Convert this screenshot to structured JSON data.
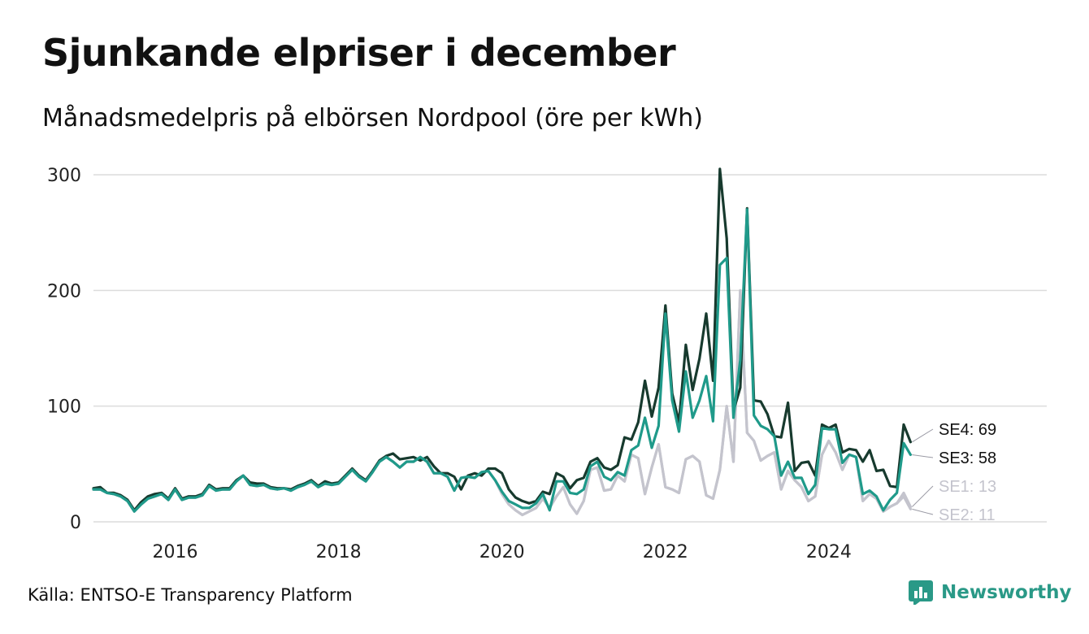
{
  "header": {
    "title": "Sjunkande elpriser i december",
    "subtitle": "Månadsmedelpris på elbörsen Nordpool (öre per kWh)"
  },
  "footer": {
    "source": "Källa: ENTSO-E Transparency Platform",
    "brand": "Newsworthy"
  },
  "colors": {
    "SE4": "#173a2e",
    "SE3": "#1f9a8a",
    "SE1": "#c4c4cd",
    "SE2": "#c4c4cd",
    "grid": "#dcdcdc",
    "brand": "#2a9987"
  },
  "chart_data": {
    "type": "line",
    "x_start": "2015-01",
    "x_end": "2024-12",
    "xticks": [
      "2016",
      "2018",
      "2020",
      "2022",
      "2024"
    ],
    "yticks": [
      0,
      100,
      200,
      300
    ],
    "ylim": [
      0,
      300
    ],
    "series": [
      {
        "name": "SE4",
        "end_label": "SE4: 69",
        "values": [
          29,
          30,
          25,
          25,
          23,
          19,
          10,
          17,
          22,
          24,
          25,
          20,
          29,
          20,
          22,
          22,
          24,
          32,
          28,
          29,
          29,
          36,
          40,
          34,
          33,
          33,
          30,
          29,
          29,
          28,
          31,
          33,
          36,
          31,
          35,
          33,
          34,
          40,
          46,
          40,
          36,
          44,
          53,
          57,
          59,
          54,
          55,
          56,
          53,
          56,
          48,
          42,
          42,
          39,
          28,
          40,
          42,
          40,
          46,
          46,
          42,
          28,
          21,
          18,
          16,
          18,
          26,
          24,
          42,
          39,
          29,
          36,
          38,
          52,
          55,
          47,
          45,
          49,
          73,
          71,
          86,
          122,
          91,
          116,
          187,
          111,
          86,
          153,
          114,
          141,
          180,
          122,
          305,
          245,
          96,
          116,
          271,
          105,
          104,
          93,
          74,
          73,
          103,
          44,
          51,
          52,
          40,
          84,
          81,
          84,
          60,
          63,
          62,
          52,
          62,
          44,
          45,
          31,
          30,
          84,
          69
        ]
      },
      {
        "name": "SE3",
        "end_label": "SE3: 58",
        "values": [
          28,
          28,
          25,
          24,
          22,
          18,
          9,
          15,
          20,
          22,
          24,
          19,
          28,
          19,
          21,
          21,
          23,
          31,
          27,
          28,
          28,
          35,
          40,
          32,
          31,
          32,
          29,
          28,
          29,
          27,
          30,
          32,
          35,
          30,
          33,
          32,
          33,
          39,
          45,
          39,
          35,
          43,
          52,
          56,
          52,
          47,
          52,
          52,
          56,
          52,
          42,
          42,
          39,
          27,
          38,
          39,
          38,
          43,
          44,
          36,
          26,
          18,
          15,
          12,
          12,
          16,
          24,
          10,
          35,
          35,
          25,
          24,
          28,
          48,
          52,
          39,
          36,
          43,
          40,
          62,
          66,
          90,
          64,
          83,
          180,
          105,
          78,
          130,
          90,
          105,
          126,
          87,
          222,
          228,
          90,
          140,
          270,
          92,
          83,
          80,
          74,
          40,
          52,
          38,
          38,
          24,
          32,
          81,
          80,
          80,
          51,
          58,
          56,
          24,
          27,
          22,
          10,
          19,
          25,
          68,
          58
        ]
      },
      {
        "name": "SE1",
        "end_label": "SE1: 13",
        "values": [
          28,
          28,
          25,
          24,
          22,
          18,
          9,
          15,
          20,
          22,
          24,
          19,
          28,
          19,
          21,
          21,
          23,
          31,
          27,
          28,
          28,
          35,
          40,
          32,
          31,
          32,
          29,
          28,
          29,
          27,
          30,
          32,
          35,
          30,
          33,
          32,
          33,
          39,
          45,
          39,
          35,
          43,
          52,
          56,
          52,
          47,
          52,
          52,
          56,
          52,
          42,
          42,
          39,
          27,
          38,
          39,
          38,
          43,
          44,
          36,
          24,
          15,
          10,
          6,
          9,
          12,
          20,
          12,
          22,
          30,
          15,
          7,
          18,
          45,
          47,
          27,
          28,
          40,
          35,
          58,
          55,
          24,
          47,
          67,
          30,
          28,
          25,
          54,
          57,
          52,
          23,
          20,
          45,
          100,
          52,
          200,
          77,
          70,
          53,
          57,
          60,
          28,
          44,
          36,
          30,
          18,
          22,
          58,
          70,
          60,
          45,
          58,
          56,
          18,
          24,
          20,
          9,
          13,
          16,
          25,
          13
        ]
      },
      {
        "name": "SE2",
        "end_label": "SE2: 11",
        "values": [
          28,
          28,
          25,
          24,
          22,
          18,
          9,
          15,
          20,
          22,
          24,
          19,
          28,
          19,
          21,
          21,
          23,
          31,
          27,
          28,
          28,
          35,
          40,
          32,
          31,
          32,
          29,
          28,
          29,
          27,
          30,
          32,
          35,
          30,
          33,
          32,
          33,
          39,
          45,
          39,
          35,
          43,
          52,
          56,
          52,
          47,
          52,
          52,
          56,
          52,
          42,
          42,
          39,
          27,
          38,
          39,
          38,
          43,
          44,
          36,
          24,
          15,
          10,
          6,
          9,
          12,
          20,
          12,
          22,
          30,
          15,
          7,
          18,
          45,
          47,
          27,
          28,
          40,
          35,
          58,
          55,
          24,
          47,
          67,
          30,
          28,
          25,
          54,
          57,
          52,
          23,
          20,
          45,
          100,
          52,
          200,
          77,
          70,
          53,
          57,
          60,
          28,
          44,
          36,
          30,
          18,
          22,
          58,
          70,
          60,
          45,
          58,
          56,
          18,
          24,
          20,
          9,
          13,
          16,
          22,
          11
        ]
      }
    ]
  }
}
